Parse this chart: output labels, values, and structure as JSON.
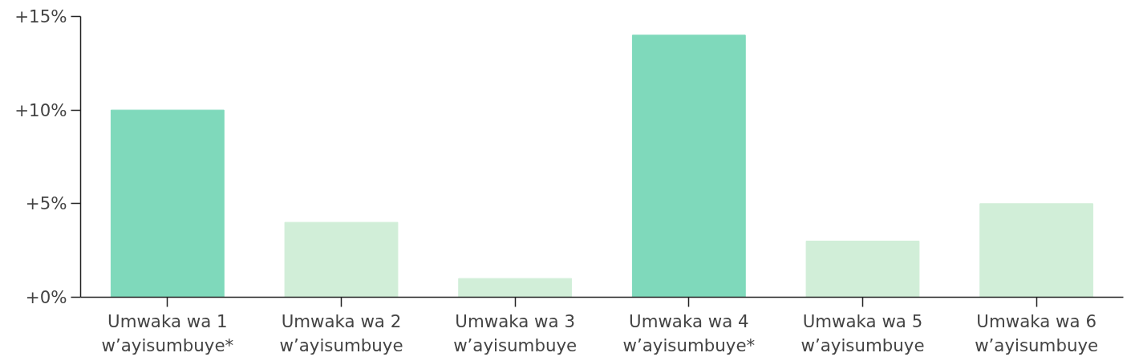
{
  "chart_data": {
    "type": "bar",
    "categories": [
      "Umwaka wa 1\nw’ayisumbuye*",
      "Umwaka wa 2\nw’ayisumbuye",
      "Umwaka wa 3\nw’ayisumbuye",
      "Umwaka wa 4\nw’ayisumbuye*",
      "Umwaka wa 5\nw’ayisumbuye",
      "Umwaka wa 6\nw’ayisumbuye"
    ],
    "values": [
      10,
      4,
      1,
      14,
      3,
      5
    ],
    "colors": [
      "#7fd9bb",
      "#d1eed8",
      "#d1eed8",
      "#7fd9bb",
      "#d1eed8",
      "#d1eed8"
    ],
    "ylim": [
      0,
      15
    ],
    "yticks": [
      {
        "value": 0,
        "label": "+0%"
      },
      {
        "value": 5,
        "label": "+5%"
      },
      {
        "value": 10,
        "label": "+10%"
      },
      {
        "value": 15,
        "label": "+15%"
      }
    ],
    "grid": false
  }
}
